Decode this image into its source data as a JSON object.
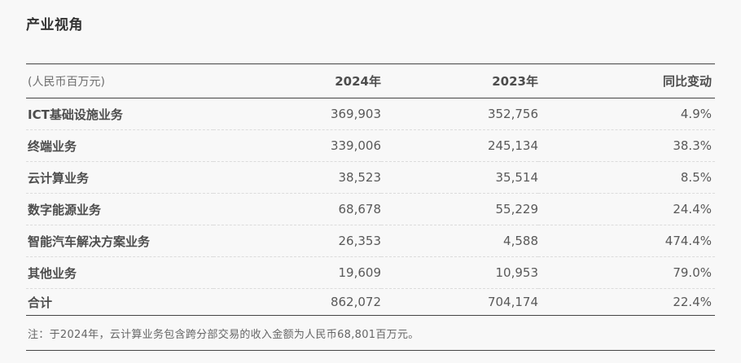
{
  "page": {
    "title": "产业视角"
  },
  "table": {
    "unit_label": "(人民币百万元)",
    "columns": {
      "year_2024": "2024年",
      "year_2023": "2023年",
      "yoy": "同比变动"
    },
    "rows": [
      {
        "label": "ICT基础设施业务",
        "v2024": "369,903",
        "v2023": "352,756",
        "yoy": "4.9%"
      },
      {
        "label": "终端业务",
        "v2024": "339,006",
        "v2023": "245,134",
        "yoy": "38.3%"
      },
      {
        "label": "云计算业务",
        "v2024": "38,523",
        "v2023": "35,514",
        "yoy": "8.5%"
      },
      {
        "label": "数字能源业务",
        "v2024": "68,678",
        "v2023": "55,229",
        "yoy": "24.4%"
      },
      {
        "label": "智能汽车解决方案业务",
        "v2024": "26,353",
        "v2023": "4,588",
        "yoy": "474.4%"
      },
      {
        "label": "其他业务",
        "v2024": "19,609",
        "v2023": "10,953",
        "yoy": "79.0%"
      }
    ],
    "total": {
      "label": "合计",
      "v2024": "862,072",
      "v2023": "704,174",
      "yoy": "22.4%"
    },
    "note": "注：于2024年，云计算业务包含跨分部交易的收入金额为人民币68,801百万元。"
  },
  "colors": {
    "background": "#f8f8f8",
    "solid_border": "#454545",
    "dashed_border": "#dcdcdc",
    "title_text": "#333333",
    "label_text": "#4d4d4d",
    "value_text": "#595959",
    "muted_text": "#6e6e6e"
  }
}
